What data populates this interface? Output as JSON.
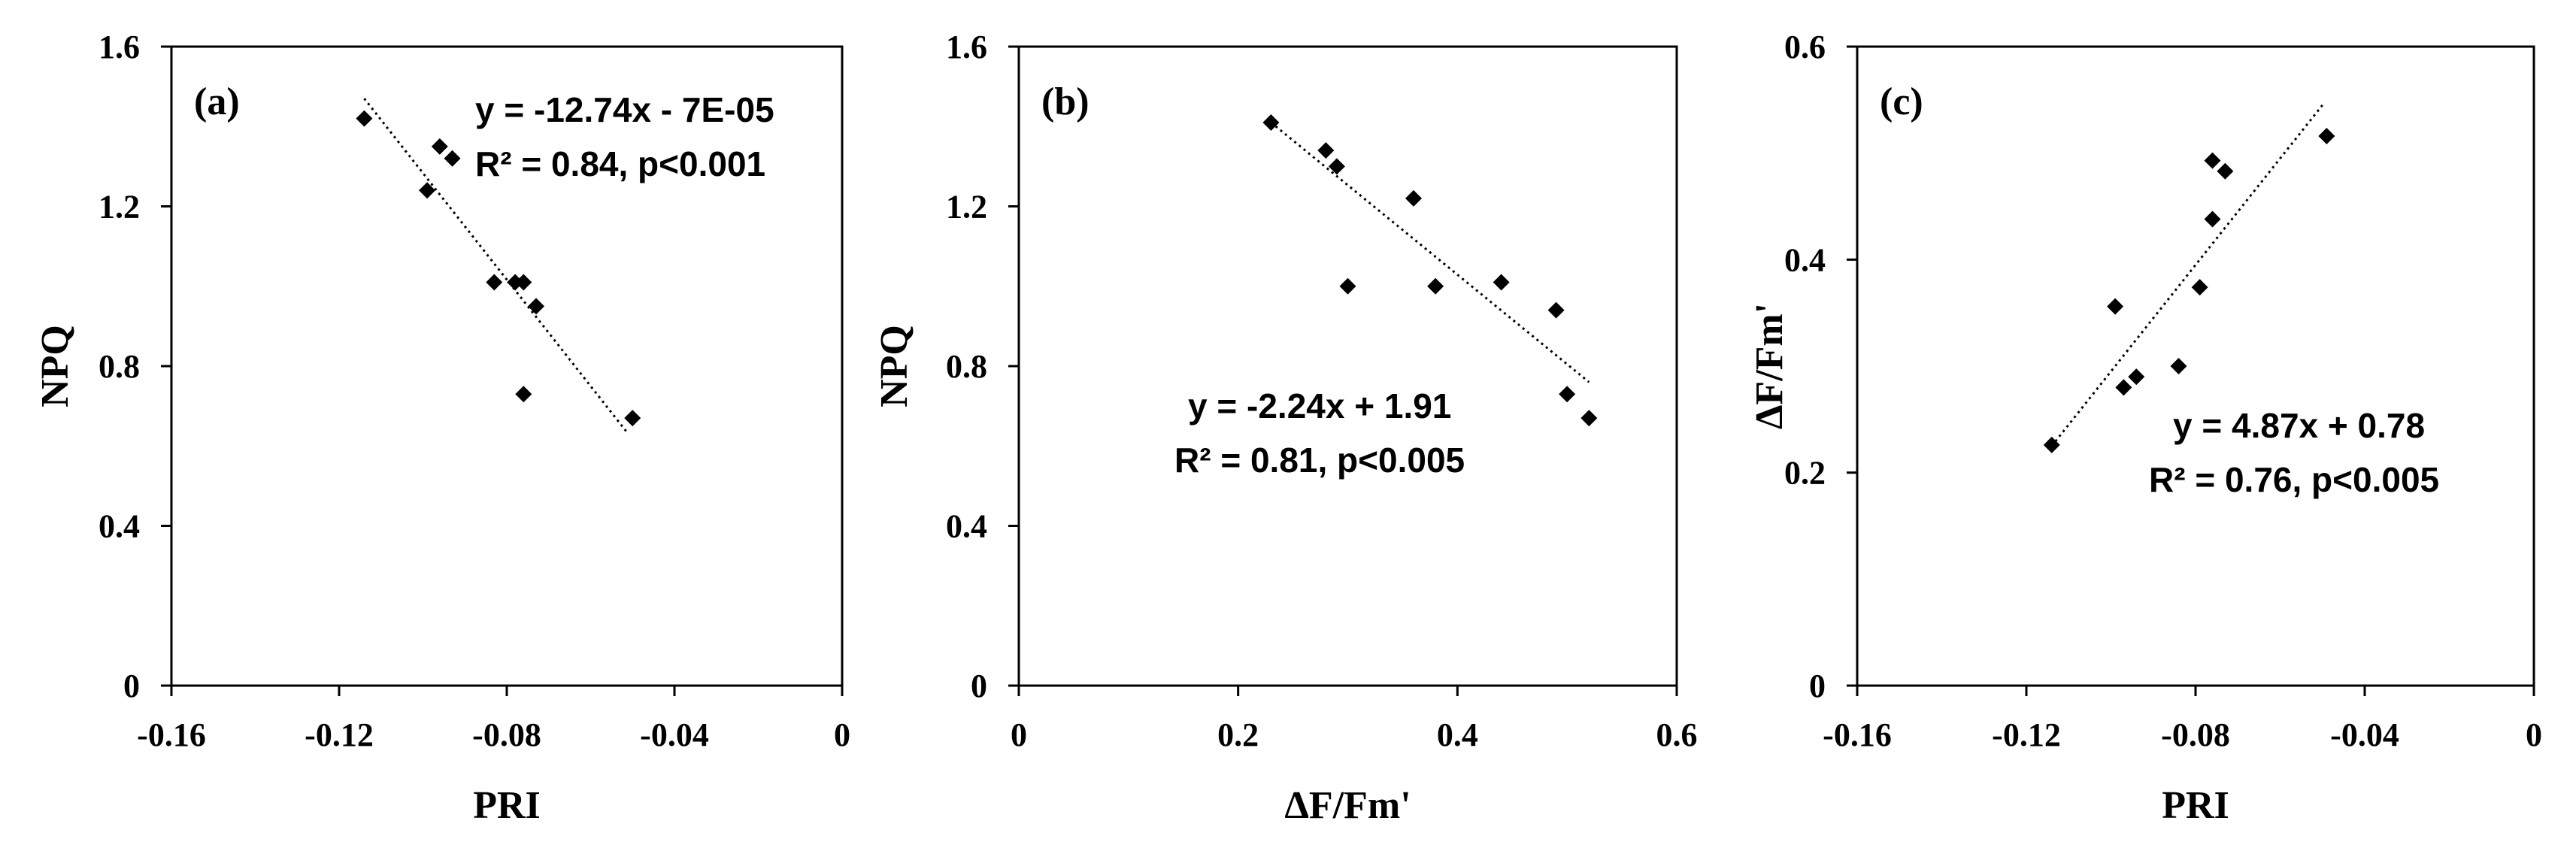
{
  "chart_data": [
    {
      "type": "scatter",
      "panel_label": "(a)",
      "xlabel": "PRI",
      "ylabel": "NPQ",
      "xlim": [
        -0.16,
        0
      ],
      "ylim": [
        0,
        1.6
      ],
      "xticks": [
        -0.16,
        -0.12,
        -0.08,
        -0.04,
        0
      ],
      "xtick_labels": [
        "-0.16",
        "-0.12",
        "-0.08",
        "-0.04",
        "0"
      ],
      "yticks": [
        0,
        0.4,
        0.8,
        1.2,
        1.6
      ],
      "ytick_labels": [
        "0",
        "0.4",
        "0.8",
        "1.2",
        "1.6"
      ],
      "grid": false,
      "marker": "diamond",
      "color": "#000000",
      "points": [
        {
          "x": -0.114,
          "y": 1.42
        },
        {
          "x": -0.099,
          "y": 1.24
        },
        {
          "x": -0.096,
          "y": 1.35
        },
        {
          "x": -0.093,
          "y": 1.32
        },
        {
          "x": -0.083,
          "y": 1.01
        },
        {
          "x": -0.078,
          "y": 1.01
        },
        {
          "x": -0.076,
          "y": 1.01
        },
        {
          "x": -0.073,
          "y": 0.95
        },
        {
          "x": -0.076,
          "y": 0.73
        },
        {
          "x": -0.05,
          "y": 0.67
        }
      ],
      "trendline": {
        "x": [
          -0.114,
          -0.051
        ],
        "y": [
          1.47,
          0.63
        ]
      },
      "equation": "y = -12.74x - 7E-05",
      "r2": "R² = 0.84, p<0.001"
    },
    {
      "type": "scatter",
      "panel_label": "(b)",
      "xlabel": "ΔF/Fm'",
      "ylabel": "NPQ",
      "xlim": [
        0,
        0.6
      ],
      "ylim": [
        0,
        1.6
      ],
      "xticks": [
        0,
        0.2,
        0.4,
        0.6
      ],
      "xtick_labels": [
        "0",
        "0.2",
        "0.4",
        "0.6"
      ],
      "yticks": [
        0,
        0.4,
        0.8,
        1.2,
        1.6
      ],
      "ytick_labels": [
        "0",
        "0.4",
        "0.8",
        "1.2",
        "1.6"
      ],
      "grid": false,
      "marker": "diamond",
      "color": "#000000",
      "points": [
        {
          "x": 0.23,
          "y": 1.41
        },
        {
          "x": 0.28,
          "y": 1.34
        },
        {
          "x": 0.29,
          "y": 1.3
        },
        {
          "x": 0.3,
          "y": 1.0
        },
        {
          "x": 0.36,
          "y": 1.22
        },
        {
          "x": 0.38,
          "y": 1.0
        },
        {
          "x": 0.44,
          "y": 1.01
        },
        {
          "x": 0.49,
          "y": 0.94
        },
        {
          "x": 0.5,
          "y": 0.73
        },
        {
          "x": 0.52,
          "y": 0.67
        }
      ],
      "trendline": {
        "x": [
          0.23,
          0.52
        ],
        "y": [
          1.41,
          0.76
        ]
      },
      "equation": "y = -2.24x + 1.91",
      "r2": "R² = 0.81, p<0.005"
    },
    {
      "type": "scatter",
      "panel_label": "(c)",
      "xlabel": "PRI",
      "ylabel": "ΔF/Fm'",
      "xlim": [
        -0.16,
        0
      ],
      "ylim": [
        0,
        0.6
      ],
      "xticks": [
        -0.16,
        -0.12,
        -0.08,
        -0.04,
        0
      ],
      "xtick_labels": [
        "-0.16",
        "-0.12",
        "-0.08",
        "-0.04",
        "0"
      ],
      "yticks": [
        0,
        0.2,
        0.4,
        0.6
      ],
      "ytick_labels": [
        "0",
        "0.2",
        "0.4",
        "0.6"
      ],
      "grid": false,
      "marker": "diamond",
      "color": "#000000",
      "points": [
        {
          "x": -0.114,
          "y": 0.226
        },
        {
          "x": -0.099,
          "y": 0.356
        },
        {
          "x": -0.097,
          "y": 0.28
        },
        {
          "x": -0.094,
          "y": 0.29
        },
        {
          "x": -0.084,
          "y": 0.3
        },
        {
          "x": -0.079,
          "y": 0.374
        },
        {
          "x": -0.076,
          "y": 0.438
        },
        {
          "x": -0.076,
          "y": 0.493
        },
        {
          "x": -0.073,
          "y": 0.483
        },
        {
          "x": -0.049,
          "y": 0.516
        }
      ],
      "trendline": {
        "x": [
          -0.114,
          -0.05
        ],
        "y": [
          0.225,
          0.545
        ]
      },
      "equation": "y = 4.87x + 0.78",
      "r2": "R² = 0.76, p<0.005"
    }
  ]
}
